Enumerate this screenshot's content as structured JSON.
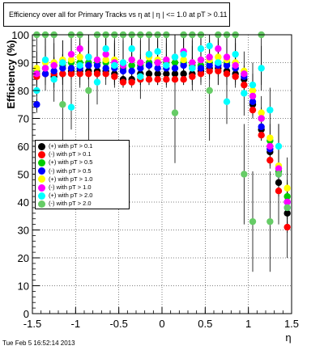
{
  "title": "Efficiency over all for Primary Tracks vs   η at | η | <= 1.0 at pT > 0.11",
  "footer": "Tue Feb  5 16:52:14 2013",
  "chart_data": {
    "type": "scatter",
    "xlabel": "η",
    "ylabel": "Efficiency (%)",
    "xlim": [
      -1.5,
      1.5
    ],
    "ylim": [
      0,
      100
    ],
    "x_ticks": [
      "-1.5",
      "-1",
      "-0.5",
      "0",
      "0.5",
      "1",
      "1.5"
    ],
    "y_ticks": [
      "0",
      "10",
      "20",
      "30",
      "40",
      "50",
      "60",
      "70",
      "80",
      "90",
      "100"
    ],
    "grid": true,
    "legend_position": "left-middle",
    "series": [
      {
        "name": "(+) with pT > 0.1",
        "color": "#000000",
        "x": [
          -1.45,
          -1.35,
          -1.25,
          -1.15,
          -1.05,
          -0.95,
          -0.85,
          -0.75,
          -0.65,
          -0.55,
          -0.45,
          -0.35,
          -0.25,
          -0.15,
          -0.05,
          0.05,
          0.15,
          0.25,
          0.35,
          0.45,
          0.55,
          0.65,
          0.75,
          0.85,
          0.95,
          1.05,
          1.15,
          1.25,
          1.35,
          1.45
        ],
        "y": [
          86,
          86,
          85,
          86,
          87,
          87,
          87,
          87,
          87,
          86,
          84,
          84,
          86,
          86,
          86,
          86,
          86,
          86,
          86,
          87,
          88,
          88,
          87,
          86,
          84,
          75,
          66,
          58,
          47,
          36
        ]
      },
      {
        "name": "(-) with pT > 0.1",
        "color": "#ff0000",
        "x": [
          -1.45,
          -1.35,
          -1.25,
          -1.15,
          -1.05,
          -0.95,
          -0.85,
          -0.75,
          -0.65,
          -0.55,
          -0.45,
          -0.35,
          -0.25,
          -0.15,
          -0.05,
          0.05,
          0.15,
          0.25,
          0.35,
          0.45,
          0.55,
          0.65,
          0.75,
          0.85,
          0.95,
          1.05,
          1.15,
          1.25,
          1.35,
          1.45
        ],
        "y": [
          85,
          86,
          86,
          86,
          86,
          86,
          86,
          86,
          86,
          85,
          83,
          83,
          84,
          84,
          84,
          84,
          84,
          84,
          85,
          86,
          87,
          87,
          86,
          85,
          82,
          73,
          64,
          55,
          44,
          31
        ]
      },
      {
        "name": "(+) with pT > 0.5",
        "color": "#00cc00",
        "x": [
          -1.45,
          -1.35,
          -1.25,
          -1.15,
          -1.05,
          -0.95,
          -0.85,
          -0.75,
          -0.65,
          -0.55,
          -0.45,
          -0.35,
          -0.25,
          -0.15,
          -0.05,
          0.05,
          0.15,
          0.25,
          0.35,
          0.45,
          0.55,
          0.65,
          0.75,
          0.85,
          0.95,
          1.05,
          1.15,
          1.25,
          1.35,
          1.45
        ],
        "y": [
          87,
          88,
          89,
          89,
          90,
          90,
          90,
          90,
          90,
          89,
          88,
          89,
          89,
          90,
          90,
          90,
          90,
          90,
          89,
          89,
          90,
          90,
          90,
          88,
          86,
          78,
          70,
          62,
          51,
          42
        ]
      },
      {
        "name": "(-) with pT > 0.5",
        "color": "#0000ff",
        "x": [
          -1.45,
          -1.35,
          -1.25,
          -1.15,
          -1.05,
          -0.95,
          -0.85,
          -0.75,
          -0.65,
          -0.55,
          -0.45,
          -0.35,
          -0.25,
          -0.15,
          -0.05,
          0.05,
          0.15,
          0.25,
          0.35,
          0.45,
          0.55,
          0.65,
          0.75,
          0.85,
          0.95,
          1.05,
          1.15,
          1.25,
          1.35,
          1.45
        ],
        "y": [
          75,
          86,
          87,
          88,
          88,
          88,
          89,
          89,
          88,
          88,
          87,
          87,
          88,
          89,
          88,
          88,
          88,
          89,
          88,
          88,
          89,
          89,
          89,
          88,
          85,
          76,
          67,
          59,
          50,
          40
        ]
      },
      {
        "name": "(+) with pT > 1.0",
        "color": "#ffff00",
        "x": [
          -1.45,
          -1.35,
          -1.25,
          -1.15,
          -1.05,
          -0.95,
          -0.85,
          -0.75,
          -0.65,
          -0.55,
          -0.45,
          -0.35,
          -0.25,
          -0.15,
          -0.05,
          0.05,
          0.15,
          0.25,
          0.35,
          0.45,
          0.55,
          0.65,
          0.75,
          0.85,
          0.95,
          1.05,
          1.15,
          1.25,
          1.35,
          1.45
        ],
        "y": [
          88,
          90,
          90,
          91,
          91,
          92,
          92,
          91,
          91,
          91,
          90,
          91,
          90,
          92,
          91,
          91,
          92,
          91,
          90,
          91,
          91,
          92,
          91,
          90,
          87,
          80,
          72,
          63,
          53,
          45
        ]
      },
      {
        "name": "(-) with pT > 1.0",
        "color": "#ff00ff",
        "x": [
          -1.45,
          -1.35,
          -1.25,
          -1.15,
          -1.05,
          -0.95,
          -0.85,
          -0.75,
          -0.65,
          -0.55,
          -0.45,
          -0.35,
          -0.25,
          -0.15,
          -0.05,
          0.05,
          0.15,
          0.25,
          0.35,
          0.45,
          0.55,
          0.65,
          0.75,
          0.85,
          0.95,
          1.05,
          1.15,
          1.25,
          1.35,
          1.45
        ],
        "y": [
          86,
          88,
          89,
          90,
          93,
          95,
          92,
          91,
          93,
          90,
          89,
          91,
          90,
          93,
          90,
          91,
          92,
          94,
          90,
          91,
          92,
          95,
          92,
          89,
          86,
          78,
          70,
          60,
          52,
          40
        ]
      },
      {
        "name": "(+) with pT > 2.0",
        "color": "#00ffff",
        "x": [
          -1.45,
          -1.35,
          -1.25,
          -1.15,
          -1.05,
          -0.95,
          -0.85,
          -0.75,
          -0.65,
          -0.55,
          -0.45,
          -0.35,
          -0.25,
          -0.15,
          -0.05,
          0.05,
          0.15,
          0.25,
          0.35,
          0.45,
          0.55,
          0.65,
          0.75,
          0.85,
          0.95,
          1.05,
          1.15,
          1.25,
          1.35,
          1.45
        ],
        "y": [
          80,
          91,
          84,
          90,
          74,
          89,
          92,
          83,
          95,
          89,
          90,
          95,
          85,
          93,
          94,
          89,
          92,
          93,
          88,
          95,
          96,
          90,
          76,
          93,
          79,
          82,
          88,
          73,
          60,
          38
        ]
      },
      {
        "name": "(-) with pT > 2.0",
        "color": "#66cc66",
        "x": [
          -1.45,
          -1.35,
          -1.25,
          -1.15,
          -1.05,
          -0.95,
          -0.85,
          -0.75,
          -0.65,
          -0.55,
          -0.45,
          -0.35,
          -0.25,
          -0.15,
          -0.05,
          0.05,
          0.15,
          0.25,
          0.35,
          0.45,
          0.55,
          0.65,
          0.75,
          0.85,
          0.95,
          1.05,
          1.15,
          1.25,
          1.35,
          1.45
        ],
        "y": [
          100,
          100,
          100,
          75,
          100,
          100,
          80,
          100,
          100,
          100,
          100,
          100,
          100,
          100,
          100,
          100,
          72,
          100,
          100,
          100,
          80,
          100,
          100,
          100,
          50,
          33,
          100,
          33,
          50,
          38
        ]
      }
    ]
  }
}
